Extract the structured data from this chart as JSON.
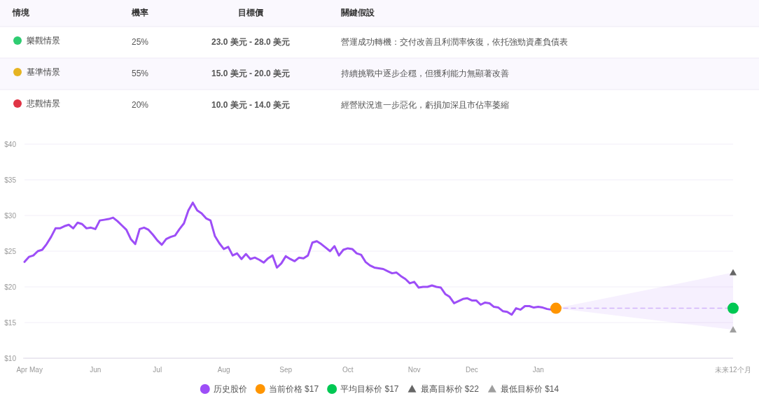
{
  "chart_data": [
    {
      "type": "other",
      "categories": [
        "情境",
        "機率",
        "目標價",
        "關鍵假設"
      ],
      "y_categories": [
        "樂觀情景",
        "基準情景",
        "悲觀情景"
      ],
      "cell_labels": [
        [
          "25%",
          "23.0 美元 - 28.0 美元",
          "營運成功轉機：交付改善且利潤率恢復，依托強勁資產負債表"
        ],
        [
          "55%",
          "15.0 美元 - 20.0 美元",
          "持續挑戰中逐步企穩，但獲利能力無顯著改善"
        ],
        [
          "20%",
          "10.0 美元 - 14.0 美元",
          "經營狀況進一步惡化，虧損加深且市佔率萎縮"
        ]
      ]
    },
    {
      "type": "line",
      "categories": [
        "Apr",
        null,
        "May",
        null,
        null,
        null,
        null,
        null,
        null,
        null,
        null,
        null,
        null,
        null,
        null,
        null,
        "Jun",
        null,
        null,
        null,
        null,
        null,
        null,
        null,
        null,
        null,
        null,
        null,
        null,
        null,
        "Jul",
        null,
        null,
        null,
        null,
        null,
        null,
        null,
        null,
        null,
        null,
        null,
        null,
        null,
        null,
        "Aug",
        null,
        null,
        null,
        null,
        null,
        null,
        null,
        null,
        null,
        null,
        null,
        null,
        null,
        "Sep",
        null,
        null,
        null,
        null,
        null,
        null,
        null,
        null,
        null,
        null,
        null,
        null,
        null,
        "Oct",
        null,
        null,
        null,
        null,
        null,
        null,
        null,
        null,
        null,
        null,
        null,
        null,
        null,
        null,
        "Nov",
        null,
        null,
        null,
        null,
        null,
        null,
        null,
        null,
        null,
        null,
        null,
        null,
        "Dec",
        null,
        null,
        null,
        null,
        null,
        null,
        null,
        null,
        null,
        null,
        null,
        null,
        null,
        null,
        "Jan",
        null,
        null,
        null,
        null,
        null,
        null,
        null,
        null,
        null,
        null,
        null,
        null,
        null,
        null,
        null,
        null,
        null,
        null,
        null,
        null,
        null,
        null,
        null,
        null,
        null,
        null,
        null,
        null,
        null,
        null,
        null,
        null,
        null,
        null,
        null,
        null,
        null,
        null,
        null,
        null,
        null,
        null,
        null,
        "未来12个月"
      ],
      "ylim": [
        10,
        40
      ],
      "yticks": [
        {
          "value": 10,
          "label": "$10"
        },
        {
          "value": 15,
          "label": "$15"
        },
        {
          "value": 20,
          "label": "$20"
        },
        {
          "value": 25,
          "label": "$25"
        },
        {
          "value": 30,
          "label": "$30"
        },
        {
          "value": 35,
          "label": "$35"
        },
        {
          "value": 40,
          "label": "$40"
        }
      ],
      "grid": "y",
      "legend": "bottom",
      "series": [
        {
          "name": "历史股价",
          "type": "line",
          "color": "#9d4ef7",
          "line_style": "solid",
          "values": [
            23.5,
            24.2,
            24.4,
            25.0,
            25.2,
            26.0,
            27.0,
            28.2,
            28.2,
            28.5,
            28.7,
            28.2,
            29.0,
            28.8,
            28.2,
            28.3,
            28.1,
            29.3,
            29.4,
            29.5,
            29.7,
            29.2,
            28.6,
            28.0,
            26.7,
            26.0,
            28.1,
            28.3,
            28.0,
            27.3,
            26.5,
            25.9,
            26.7,
            27.0,
            27.2,
            28.1,
            28.9,
            30.7,
            31.8,
            30.7,
            30.3,
            29.6,
            29.3,
            27.1,
            26.1,
            25.3,
            25.6,
            24.4,
            24.7,
            23.9,
            24.6,
            23.9,
            24.1,
            23.8,
            23.4,
            24.0,
            24.4,
            22.7,
            23.3,
            24.3,
            23.9,
            23.6,
            24.1,
            24.0,
            24.4,
            26.2,
            26.4,
            26.0,
            25.5,
            25.0,
            25.7,
            24.4,
            25.2,
            25.4,
            25.3,
            24.7,
            24.5,
            23.5,
            23.0,
            22.7,
            22.6,
            22.5,
            22.2,
            21.9,
            22.0,
            21.5,
            21.1,
            20.5,
            20.7,
            19.9,
            20.0,
            20.0,
            20.2,
            20.0,
            19.9,
            19.0,
            18.6,
            17.7,
            18.0,
            18.3,
            18.4,
            18.1,
            18.1,
            17.5,
            17.8,
            17.7,
            17.2,
            17.1,
            16.6,
            16.5,
            16.1,
            17.0,
            16.8,
            17.3,
            17.3,
            17.1,
            17.2,
            17.1,
            16.9,
            16.8,
            17.0,
            null,
            null,
            null,
            null,
            null,
            null,
            null,
            null,
            null,
            null,
            null,
            null,
            null,
            null,
            null,
            null,
            null,
            null,
            null,
            null,
            null,
            null,
            null,
            null,
            null,
            null,
            null,
            null,
            null,
            null,
            null,
            null,
            null,
            null,
            null,
            null,
            null,
            null,
            null,
            null
          ]
        },
        {
          "type": "line",
          "color": "#d2b4fa",
          "line_style": "dashed",
          "values": [
            null,
            null,
            null,
            null,
            null,
            null,
            null,
            null,
            null,
            null,
            null,
            null,
            null,
            null,
            null,
            null,
            null,
            null,
            null,
            null,
            null,
            null,
            null,
            null,
            null,
            null,
            null,
            null,
            null,
            null,
            null,
            null,
            null,
            null,
            null,
            null,
            null,
            null,
            null,
            null,
            null,
            null,
            null,
            null,
            null,
            null,
            null,
            null,
            null,
            null,
            null,
            null,
            null,
            null,
            null,
            null,
            null,
            null,
            null,
            null,
            null,
            null,
            null,
            null,
            null,
            null,
            null,
            null,
            null,
            null,
            null,
            null,
            null,
            null,
            null,
            null,
            null,
            null,
            null,
            null,
            null,
            null,
            null,
            null,
            null,
            null,
            null,
            null,
            null,
            null,
            null,
            null,
            null,
            null,
            null,
            null,
            null,
            null,
            null,
            null,
            null,
            null,
            null,
            null,
            null,
            null,
            null,
            null,
            null,
            null,
            null,
            null,
            null,
            null,
            null,
            null,
            null,
            null,
            null,
            null,
            17,
            null,
            null,
            null,
            null,
            null,
            null,
            null,
            null,
            null,
            null,
            null,
            null,
            null,
            null,
            null,
            null,
            null,
            null,
            null,
            null,
            null,
            null,
            null,
            null,
            null,
            null,
            null,
            null,
            null,
            null,
            null,
            null,
            null,
            null,
            null,
            null,
            null,
            null,
            null,
            17
          ],
          "lower": [
            null,
            null,
            null,
            null,
            null,
            null,
            null,
            null,
            null,
            null,
            null,
            null,
            null,
            null,
            null,
            null,
            null,
            null,
            null,
            null,
            null,
            null,
            null,
            null,
            null,
            null,
            null,
            null,
            null,
            null,
            null,
            null,
            null,
            null,
            null,
            null,
            null,
            null,
            null,
            null,
            null,
            null,
            null,
            null,
            null,
            null,
            null,
            null,
            null,
            null,
            null,
            null,
            null,
            null,
            null,
            null,
            null,
            null,
            null,
            null,
            null,
            null,
            null,
            null,
            null,
            null,
            null,
            null,
            null,
            null,
            null,
            null,
            null,
            null,
            null,
            null,
            null,
            null,
            null,
            null,
            null,
            null,
            null,
            null,
            null,
            null,
            null,
            null,
            null,
            null,
            null,
            null,
            null,
            null,
            null,
            null,
            null,
            null,
            null,
            null,
            null,
            null,
            null,
            null,
            null,
            null,
            null,
            null,
            null,
            null,
            null,
            null,
            null,
            null,
            null,
            null,
            null,
            null,
            null,
            null,
            17,
            null,
            null,
            null,
            null,
            null,
            null,
            null,
            null,
            null,
            null,
            null,
            null,
            null,
            null,
            null,
            null,
            null,
            null,
            null,
            null,
            null,
            null,
            null,
            null,
            null,
            null,
            null,
            null,
            null,
            null,
            null,
            null,
            null,
            null,
            null,
            null,
            null,
            null,
            null,
            14
          ],
          "upper": [
            null,
            null,
            null,
            null,
            null,
            null,
            null,
            null,
            null,
            null,
            null,
            null,
            null,
            null,
            null,
            null,
            null,
            null,
            null,
            null,
            null,
            null,
            null,
            null,
            null,
            null,
            null,
            null,
            null,
            null,
            null,
            null,
            null,
            null,
            null,
            null,
            null,
            null,
            null,
            null,
            null,
            null,
            null,
            null,
            null,
            null,
            null,
            null,
            null,
            null,
            null,
            null,
            null,
            null,
            null,
            null,
            null,
            null,
            null,
            null,
            null,
            null,
            null,
            null,
            null,
            null,
            null,
            null,
            null,
            null,
            null,
            null,
            null,
            null,
            null,
            null,
            null,
            null,
            null,
            null,
            null,
            null,
            null,
            null,
            null,
            null,
            null,
            null,
            null,
            null,
            null,
            null,
            null,
            null,
            null,
            null,
            null,
            null,
            null,
            null,
            null,
            null,
            null,
            null,
            null,
            null,
            null,
            null,
            null,
            null,
            null,
            null,
            null,
            null,
            null,
            null,
            null,
            null,
            null,
            null,
            17,
            null,
            null,
            null,
            null,
            null,
            null,
            null,
            null,
            null,
            null,
            null,
            null,
            null,
            null,
            null,
            null,
            null,
            null,
            null,
            null,
            null,
            null,
            null,
            null,
            null,
            null,
            null,
            null,
            null,
            null,
            null,
            null,
            null,
            null,
            null,
            null,
            null,
            null,
            null,
            22
          ]
        },
        {
          "name": "当前价格 $17",
          "type": "scatter",
          "color": "#ff9500",
          "marker": "circle",
          "values": [
            null,
            null,
            null,
            null,
            null,
            null,
            null,
            null,
            null,
            null,
            null,
            null,
            null,
            null,
            null,
            null,
            null,
            null,
            null,
            null,
            null,
            null,
            null,
            null,
            null,
            null,
            null,
            null,
            null,
            null,
            null,
            null,
            null,
            null,
            null,
            null,
            null,
            null,
            null,
            null,
            null,
            null,
            null,
            null,
            null,
            null,
            null,
            null,
            null,
            null,
            null,
            null,
            null,
            null,
            null,
            null,
            null,
            null,
            null,
            null,
            null,
            null,
            null,
            null,
            null,
            null,
            null,
            null,
            null,
            null,
            null,
            null,
            null,
            null,
            null,
            null,
            null,
            null,
            null,
            null,
            null,
            null,
            null,
            null,
            null,
            null,
            null,
            null,
            null,
            null,
            null,
            null,
            null,
            null,
            null,
            null,
            null,
            null,
            null,
            null,
            null,
            null,
            null,
            null,
            null,
            null,
            null,
            null,
            null,
            null,
            null,
            null,
            null,
            null,
            null,
            null,
            null,
            null,
            null,
            null,
            17,
            null,
            null,
            null,
            null,
            null,
            null,
            null,
            null,
            null,
            null,
            null,
            null,
            null,
            null,
            null,
            null,
            null,
            null,
            null,
            null,
            null,
            null,
            null,
            null,
            null,
            null,
            null,
            null,
            null,
            null,
            null,
            null,
            null,
            null,
            null,
            null,
            null,
            null,
            null,
            null
          ]
        },
        {
          "name": "平均目标价 $17",
          "type": "scatter",
          "color": "#00c853",
          "marker": "circle",
          "values": [
            null,
            null,
            null,
            null,
            null,
            null,
            null,
            null,
            null,
            null,
            null,
            null,
            null,
            null,
            null,
            null,
            null,
            null,
            null,
            null,
            null,
            null,
            null,
            null,
            null,
            null,
            null,
            null,
            null,
            null,
            null,
            null,
            null,
            null,
            null,
            null,
            null,
            null,
            null,
            null,
            null,
            null,
            null,
            null,
            null,
            null,
            null,
            null,
            null,
            null,
            null,
            null,
            null,
            null,
            null,
            null,
            null,
            null,
            null,
            null,
            null,
            null,
            null,
            null,
            null,
            null,
            null,
            null,
            null,
            null,
            null,
            null,
            null,
            null,
            null,
            null,
            null,
            null,
            null,
            null,
            null,
            null,
            null,
            null,
            null,
            null,
            null,
            null,
            null,
            null,
            null,
            null,
            null,
            null,
            null,
            null,
            null,
            null,
            null,
            null,
            null,
            null,
            null,
            null,
            null,
            null,
            null,
            null,
            null,
            null,
            null,
            null,
            null,
            null,
            null,
            null,
            null,
            null,
            null,
            null,
            null,
            null,
            null,
            null,
            null,
            null,
            null,
            null,
            null,
            null,
            null,
            null,
            null,
            null,
            null,
            null,
            null,
            null,
            null,
            null,
            null,
            null,
            null,
            null,
            null,
            null,
            null,
            null,
            null,
            null,
            null,
            null,
            null,
            null,
            null,
            null,
            null,
            null,
            null,
            null,
            17
          ]
        },
        {
          "name": "最高目标价 $22",
          "type": "scatter",
          "color": "#666666",
          "marker": "triangle",
          "values": [
            null,
            null,
            null,
            null,
            null,
            null,
            null,
            null,
            null,
            null,
            null,
            null,
            null,
            null,
            null,
            null,
            null,
            null,
            null,
            null,
            null,
            null,
            null,
            null,
            null,
            null,
            null,
            null,
            null,
            null,
            null,
            null,
            null,
            null,
            null,
            null,
            null,
            null,
            null,
            null,
            null,
            null,
            null,
            null,
            null,
            null,
            null,
            null,
            null,
            null,
            null,
            null,
            null,
            null,
            null,
            null,
            null,
            null,
            null,
            null,
            null,
            null,
            null,
            null,
            null,
            null,
            null,
            null,
            null,
            null,
            null,
            null,
            null,
            null,
            null,
            null,
            null,
            null,
            null,
            null,
            null,
            null,
            null,
            null,
            null,
            null,
            null,
            null,
            null,
            null,
            null,
            null,
            null,
            null,
            null,
            null,
            null,
            null,
            null,
            null,
            null,
            null,
            null,
            null,
            null,
            null,
            null,
            null,
            null,
            null,
            null,
            null,
            null,
            null,
            null,
            null,
            null,
            null,
            null,
            null,
            null,
            null,
            null,
            null,
            null,
            null,
            null,
            null,
            null,
            null,
            null,
            null,
            null,
            null,
            null,
            null,
            null,
            null,
            null,
            null,
            null,
            null,
            null,
            null,
            null,
            null,
            null,
            null,
            null,
            null,
            null,
            null,
            null,
            null,
            null,
            null,
            null,
            null,
            null,
            null,
            22
          ]
        },
        {
          "name": "最低目标价 $14",
          "type": "scatter",
          "color": "#9e9e9e",
          "marker": "triangle",
          "values": [
            null,
            null,
            null,
            null,
            null,
            null,
            null,
            null,
            null,
            null,
            null,
            null,
            null,
            null,
            null,
            null,
            null,
            null,
            null,
            null,
            null,
            null,
            null,
            null,
            null,
            null,
            null,
            null,
            null,
            null,
            null,
            null,
            null,
            null,
            null,
            null,
            null,
            null,
            null,
            null,
            null,
            null,
            null,
            null,
            null,
            null,
            null,
            null,
            null,
            null,
            null,
            null,
            null,
            null,
            null,
            null,
            null,
            null,
            null,
            null,
            null,
            null,
            null,
            null,
            null,
            null,
            null,
            null,
            null,
            null,
            null,
            null,
            null,
            null,
            null,
            null,
            null,
            null,
            null,
            null,
            null,
            null,
            null,
            null,
            null,
            null,
            null,
            null,
            null,
            null,
            null,
            null,
            null,
            null,
            null,
            null,
            null,
            null,
            null,
            null,
            null,
            null,
            null,
            null,
            null,
            null,
            null,
            null,
            null,
            null,
            null,
            null,
            null,
            null,
            null,
            null,
            null,
            null,
            null,
            null,
            null,
            null,
            null,
            null,
            null,
            null,
            null,
            null,
            null,
            null,
            null,
            null,
            null,
            null,
            null,
            null,
            null,
            null,
            null,
            null,
            null,
            null,
            null,
            null,
            null,
            null,
            null,
            null,
            null,
            null,
            null,
            null,
            null,
            null,
            null,
            null,
            null,
            null,
            null,
            null,
            14
          ]
        }
      ]
    }
  ]
}
